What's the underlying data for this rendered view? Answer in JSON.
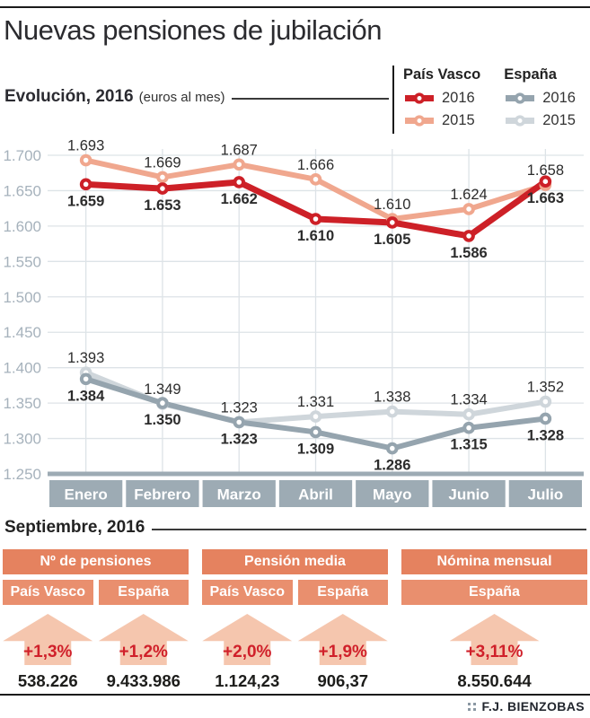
{
  "title": "Nuevas pensiones de jubilación",
  "legend": {
    "groups": [
      {
        "name": "País Vasco",
        "items": [
          {
            "label": "2016",
            "color": "#cd2027"
          },
          {
            "label": "2015",
            "color": "#f0a78e"
          }
        ]
      },
      {
        "name": "España",
        "items": [
          {
            "label": "2016",
            "color": "#95a4ae"
          },
          {
            "label": "2015",
            "color": "#cfd6db"
          }
        ]
      }
    ]
  },
  "chart_data": {
    "type": "line",
    "title": "Evolución, 2016",
    "unit_label": "(euros al mes)",
    "categories": [
      "Enero",
      "Febrero",
      "Marzo",
      "Abril",
      "Mayo",
      "Junio",
      "Julio"
    ],
    "ylim": [
      1250,
      1700
    ],
    "ytick_step": 50,
    "grid": true,
    "legend_position": "top-right",
    "series": [
      {
        "id": "pais-vasco-2015",
        "name": "País Vasco 2015",
        "color": "#f0a78e",
        "labels": "above",
        "weight": "normal",
        "emphasis": false,
        "values": [
          1693,
          1669,
          1687,
          1666,
          1610,
          1624,
          1658
        ]
      },
      {
        "id": "pais-vasco-2016",
        "name": "País Vasco 2016",
        "color": "#cd2027",
        "labels": "below",
        "weight": "bold",
        "emphasis": true,
        "values": [
          1659,
          1653,
          1662,
          1610,
          1605,
          1586,
          1663
        ]
      },
      {
        "id": "espana-2015",
        "name": "España 2015",
        "color": "#cfd6db",
        "labels": "above",
        "weight": "normal",
        "emphasis": false,
        "values": [
          1393,
          1349,
          1323,
          1331,
          1338,
          1334,
          1352
        ]
      },
      {
        "id": "espana-2016",
        "name": "España 2016",
        "color": "#95a4ae",
        "labels": "below",
        "weight": "bold",
        "emphasis": false,
        "values": [
          1384,
          1350,
          1323,
          1309,
          1286,
          1315,
          1328
        ]
      }
    ]
  },
  "september": {
    "heading": "Septiembre, 2016",
    "groups": [
      {
        "title": "Nº de pensiones",
        "columns": [
          {
            "region": "País Vasco",
            "change": "+1,3%",
            "value": "538.226"
          },
          {
            "region": "España",
            "change": "+1,2%",
            "value": "9.433.986"
          }
        ]
      },
      {
        "title": "Pensión media",
        "columns": [
          {
            "region": "País Vasco",
            "change": "+2,0%",
            "value": "1.124,23"
          },
          {
            "region": "España",
            "change": "+1,9%",
            "value": "906,37"
          }
        ]
      },
      {
        "title": "Nómina mensual",
        "columns": [
          {
            "region": "España",
            "change": "+3,11%",
            "value": "8.550.644"
          }
        ]
      }
    ]
  },
  "footer": {
    "credit": "F.J. BIENZOBAS"
  },
  "colors": {
    "header_salmon": "#e5825f",
    "subheader_salmon": "#e98f6e",
    "arrow_salmon": "#f5c6ae",
    "pct_red": "#d0202a",
    "box_gray": "#9dabb4",
    "grid": "#dde3e7",
    "ylabel": "#a6b2bc",
    "label_dark": "#2c2c2c"
  }
}
